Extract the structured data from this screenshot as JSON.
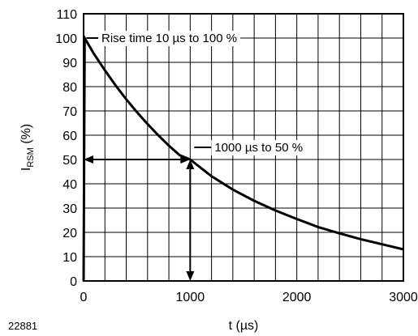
{
  "chart_data": {
    "type": "line",
    "xlabel": "t (µs)",
    "ylabel_main": "I",
    "ylabel_sub": "RSM",
    "ylabel_suffix": " (%)",
    "xlim": [
      0,
      3000
    ],
    "ylim": [
      0,
      110
    ],
    "x_ticks": [
      0,
      1000,
      2000,
      3000
    ],
    "y_ticks": [
      0,
      10,
      20,
      30,
      40,
      50,
      60,
      70,
      80,
      90,
      100,
      110
    ],
    "grid": true,
    "series": [
      {
        "x": [
          0,
          10,
          100,
          200,
          300,
          400,
          500,
          600,
          700,
          800,
          900,
          1000,
          1200,
          1400,
          1600,
          1800,
          2000,
          2200,
          2400,
          2600,
          2800,
          3000
        ],
        "y": [
          0,
          100,
          93.3,
          86.7,
          80.5,
          74.8,
          69.5,
          64.6,
          60.0,
          55.7,
          51.8,
          50.0,
          43.1,
          37.6,
          33.0,
          29.0,
          25.5,
          22.2,
          19.6,
          17.2,
          15.1,
          13.0
        ]
      }
    ],
    "annotations": [
      {
        "text": "Rise time 10 µs to 100 %",
        "x": 10,
        "y": 100
      },
      {
        "text": "1000 µs to 50 %",
        "x": 1000,
        "y": 50
      }
    ]
  },
  "figure_id": "22881"
}
